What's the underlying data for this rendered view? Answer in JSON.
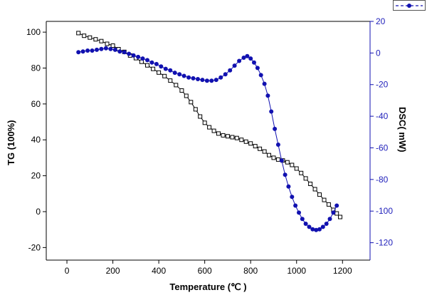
{
  "chart_data": {
    "type": "line",
    "xlabel": "Temperature (℃ )",
    "ylabel_left": "TG (100%)",
    "ylabel_right": "DSC( mW)",
    "xlim": [
      -90,
      1320
    ],
    "ylim_left": [
      -27,
      106
    ],
    "ylim_right": [
      -131,
      20
    ],
    "x_ticks": [
      0,
      200,
      400,
      600,
      800,
      1000,
      1200
    ],
    "y_ticks_left": [
      100,
      80,
      60,
      40,
      20,
      0,
      -20
    ],
    "y_ticks_right": [
      20,
      0,
      -20,
      -40,
      -60,
      -80,
      -100,
      -120
    ],
    "grid": false,
    "colors": {
      "tg": "#000000",
      "dsc": "#1111b0",
      "right_tick_labels": "#2222bb",
      "frame": "#000000"
    },
    "legend": {
      "position": "top-right",
      "clipped": true,
      "entries": [
        {
          "series": "DSC",
          "symbol": "filled-circle-with-dashed-line",
          "color": "#1111b0"
        }
      ]
    },
    "series": [
      {
        "name": "TG",
        "axis": "left",
        "marker": "open-square",
        "color": "#000000",
        "points": [
          [
            50,
            99.5
          ],
          [
            75,
            98
          ],
          [
            100,
            97
          ],
          [
            125,
            96
          ],
          [
            150,
            95
          ],
          [
            175,
            93.5
          ],
          [
            200,
            92.5
          ],
          [
            225,
            90.5
          ],
          [
            250,
            89
          ],
          [
            275,
            87
          ],
          [
            300,
            85.5
          ],
          [
            325,
            83.5
          ],
          [
            350,
            81.5
          ],
          [
            375,
            79.5
          ],
          [
            400,
            77.5
          ],
          [
            425,
            75.5
          ],
          [
            450,
            73
          ],
          [
            475,
            70.5
          ],
          [
            500,
            67.5
          ],
          [
            520,
            64.5
          ],
          [
            540,
            61
          ],
          [
            560,
            57
          ],
          [
            580,
            53
          ],
          [
            600,
            49.5
          ],
          [
            620,
            47
          ],
          [
            640,
            45
          ],
          [
            660,
            43.5
          ],
          [
            680,
            42.5
          ],
          [
            700,
            42
          ],
          [
            720,
            41.5
          ],
          [
            740,
            41
          ],
          [
            760,
            40
          ],
          [
            780,
            39
          ],
          [
            800,
            38
          ],
          [
            820,
            36.5
          ],
          [
            840,
            35
          ],
          [
            860,
            33.5
          ],
          [
            880,
            31.5
          ],
          [
            900,
            30
          ],
          [
            920,
            29
          ],
          [
            940,
            28.5
          ],
          [
            960,
            27.5
          ],
          [
            980,
            26
          ],
          [
            1000,
            24
          ],
          [
            1020,
            21.5
          ],
          [
            1040,
            18.5
          ],
          [
            1060,
            15.5
          ],
          [
            1080,
            12.5
          ],
          [
            1100,
            9.5
          ],
          [
            1120,
            6.5
          ],
          [
            1140,
            4
          ],
          [
            1160,
            1
          ],
          [
            1175,
            -1
          ],
          [
            1190,
            -3
          ]
        ]
      },
      {
        "name": "DSC",
        "axis": "right",
        "marker": "filled-circle",
        "color": "#1111b0",
        "points": [
          [
            50,
            0.5
          ],
          [
            70,
            1
          ],
          [
            90,
            1.5
          ],
          [
            110,
            1.5
          ],
          [
            130,
            2
          ],
          [
            150,
            2.5
          ],
          [
            170,
            3
          ],
          [
            190,
            2.5
          ],
          [
            210,
            2
          ],
          [
            230,
            1
          ],
          [
            250,
            0.5
          ],
          [
            270,
            -0.5
          ],
          [
            290,
            -1.5
          ],
          [
            310,
            -2.5
          ],
          [
            330,
            -3.5
          ],
          [
            350,
            -4.5
          ],
          [
            370,
            -6
          ],
          [
            390,
            -7
          ],
          [
            410,
            -8.5
          ],
          [
            430,
            -10
          ],
          [
            450,
            -11
          ],
          [
            470,
            -12.5
          ],
          [
            490,
            -13.5
          ],
          [
            510,
            -14.5
          ],
          [
            530,
            -15.5
          ],
          [
            550,
            -16
          ],
          [
            570,
            -16.5
          ],
          [
            590,
            -17
          ],
          [
            610,
            -17.5
          ],
          [
            630,
            -17.5
          ],
          [
            650,
            -17
          ],
          [
            670,
            -15.5
          ],
          [
            690,
            -13.5
          ],
          [
            710,
            -11
          ],
          [
            730,
            -8
          ],
          [
            750,
            -5
          ],
          [
            770,
            -3
          ],
          [
            785,
            -2
          ],
          [
            800,
            -3.5
          ],
          [
            815,
            -6
          ],
          [
            830,
            -9.5
          ],
          [
            845,
            -14
          ],
          [
            860,
            -19.5
          ],
          [
            875,
            -27
          ],
          [
            890,
            -37
          ],
          [
            905,
            -48
          ],
          [
            920,
            -58
          ],
          [
            935,
            -68
          ],
          [
            950,
            -77
          ],
          [
            965,
            -84.5
          ],
          [
            980,
            -91
          ],
          [
            995,
            -96.5
          ],
          [
            1010,
            -101
          ],
          [
            1025,
            -105
          ],
          [
            1040,
            -108
          ],
          [
            1055,
            -110
          ],
          [
            1070,
            -111.5
          ],
          [
            1085,
            -112
          ],
          [
            1100,
            -111.5
          ],
          [
            1115,
            -110
          ],
          [
            1130,
            -108
          ],
          [
            1145,
            -105
          ],
          [
            1160,
            -101
          ],
          [
            1175,
            -96.5
          ]
        ]
      }
    ]
  }
}
